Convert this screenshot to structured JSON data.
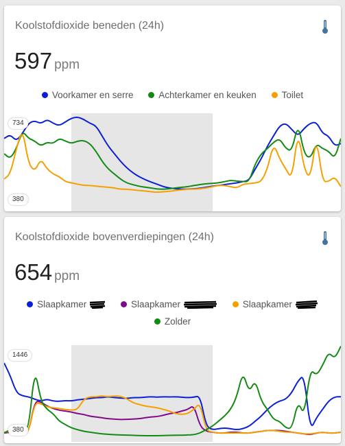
{
  "card1": {
    "title": "Koolstofdioxide beneden (24h)",
    "icon": "thermometer-icon",
    "value": "597",
    "unit": "ppm",
    "legend": [
      {
        "label": "Voorkamer en serre",
        "color": "#0a1fd6"
      },
      {
        "label": "Achterkamer en keuken",
        "color": "#138a13"
      },
      {
        "label": "Toilet",
        "color": "#f5a000"
      }
    ],
    "max_label": "734",
    "min_label": "380"
  },
  "card2": {
    "title": "Koolstofdioxide bovenverdiepingen (24h)",
    "icon": "thermometer-icon",
    "value": "654",
    "unit": "ppm",
    "legend": [
      {
        "label": "Slaapkamer",
        "color": "#0a1fd6"
      },
      {
        "label": "Slaapkamer",
        "color": "#7f0a8a"
      },
      {
        "label": "Slaapkamer",
        "color": "#f5a000"
      },
      {
        "label": "Zolder",
        "color": "#138a13"
      }
    ],
    "max_label": "1446",
    "min_label": "380"
  },
  "chart_data": [
    {
      "type": "line",
      "ylim": [
        380,
        734
      ],
      "series": [
        {
          "name": "Voorkamer en serre",
          "color": "#0a1fd6",
          "values": [
            640,
            655,
            630,
            660,
            700,
            710,
            698,
            715,
            700,
            690,
            705,
            720,
            725,
            715,
            700,
            690,
            650,
            610,
            580,
            550,
            525,
            505,
            490,
            478,
            468,
            460,
            450,
            445,
            442,
            440,
            440,
            442,
            444,
            448,
            452,
            455,
            458,
            462,
            465,
            470,
            475,
            520,
            560,
            610,
            650,
            690,
            700,
            675,
            650,
            680,
            700,
            705,
            660,
            650,
            610,
            620
          ]
        },
        {
          "name": "Achterkamer en keuken",
          "color": "#138a13",
          "values": [
            580,
            560,
            600,
            670,
            640,
            630,
            610,
            625,
            620,
            640,
            630,
            620,
            630,
            632,
            620,
            590,
            550,
            520,
            500,
            480,
            465,
            458,
            452,
            448,
            445,
            441,
            440,
            442,
            445,
            448,
            450,
            455,
            458,
            462,
            463,
            465,
            470,
            475,
            472,
            470,
            470,
            540,
            580,
            600,
            625,
            640,
            600,
            590,
            700,
            580,
            560,
            620,
            600,
            590,
            560,
            640
          ]
        },
        {
          "name": "Toilet",
          "color": "#f5a000",
          "values": [
            480,
            500,
            600,
            680,
            540,
            510,
            560,
            520,
            500,
            490,
            470,
            465,
            460,
            455,
            455,
            452,
            450,
            448,
            445,
            440,
            440,
            438,
            435,
            433,
            430,
            428,
            430,
            432,
            435,
            438,
            440,
            440,
            442,
            445,
            450,
            455,
            455,
            450,
            445,
            460,
            462,
            465,
            470,
            520,
            620,
            560,
            520,
            480,
            670,
            520,
            480,
            650,
            470,
            470,
            490,
            450
          ]
        }
      ]
    },
    {
      "type": "line",
      "ylim": [
        380,
        1446
      ],
      "series": [
        {
          "name": "Slaapkamer",
          "color": "#0a1fd6",
          "values": [
            1250,
            1100,
            900,
            860,
            850,
            820,
            800,
            820,
            800,
            795,
            805,
            800,
            815,
            820,
            830,
            840,
            840,
            850,
            840,
            835,
            830,
            840,
            840,
            845,
            850,
            845,
            850,
            848,
            850,
            845,
            840,
            845,
            860,
            500,
            460,
            470,
            480,
            470,
            460,
            470,
            500,
            560,
            620,
            700,
            760,
            800,
            820,
            900,
            1040,
            1110,
            450,
            600,
            700,
            800,
            850,
            850
          ]
        },
        {
          "name": "Slaapkamer",
          "color": "#7f0a8a",
          "values": [
            420,
            430,
            410,
            420,
            420,
            800,
            790,
            740,
            710,
            690,
            680,
            670,
            650,
            640,
            620,
            610,
            600,
            590,
            585,
            580,
            582,
            585,
            590,
            600,
            610,
            615,
            630,
            650,
            660,
            680,
            700,
            750,
            500,
            440,
            430,
            420,
            420,
            430,
            430,
            420,
            420,
            430,
            440,
            450,
            450,
            450,
            440,
            430,
            420,
            410,
            400,
            420,
            430,
            420,
            420,
            430
          ]
        },
        {
          "name": "Slaapkamer",
          "color": "#f5a000",
          "values": [
            430,
            440,
            420,
            430,
            420,
            780,
            770,
            730,
            720,
            710,
            700,
            690,
            700,
            820,
            850,
            850,
            860,
            850,
            860,
            855,
            830,
            780,
            760,
            740,
            730,
            720,
            700,
            680,
            650,
            640,
            650,
            700,
            780,
            450,
            430,
            420,
            420,
            420,
            420,
            420,
            420,
            430,
            440,
            450,
            450,
            440,
            430,
            430,
            420,
            410,
            410,
            420,
            430,
            420,
            420,
            430
          ]
        },
        {
          "name": "Zolder",
          "color": "#138a13",
          "values": [
            420,
            460,
            430,
            440,
            460,
            1200,
            800,
            700,
            650,
            560,
            520,
            480,
            460,
            440,
            430,
            420,
            410,
            405,
            400,
            398,
            395,
            392,
            390,
            388,
            388,
            388,
            390,
            392,
            394,
            395,
            396,
            400,
            420,
            460,
            500,
            560,
            620,
            700,
            850,
            1150,
            900,
            1050,
            800,
            700,
            580,
            560,
            480,
            470,
            800,
            620,
            1180,
            1100,
            1220,
            1380,
            1300,
            1450
          ]
        }
      ]
    }
  ]
}
